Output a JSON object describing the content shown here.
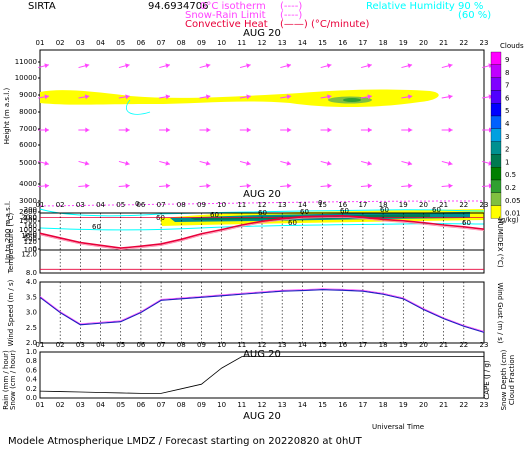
{
  "header": {
    "station": "SIRTA",
    "coords": "94.6934706",
    "isotherm_label": "0°C isotherm",
    "isotherm_key": "(----)",
    "snowrain_label": "Snow-Rain Limit",
    "snowrain_key": "(----)",
    "convective_label": "Convective Heat",
    "convective_key": "(——) (°C/minute)",
    "rh_label": "Relative Humidity",
    "rh_90": "90 %",
    "rh_60": "(60 %)"
  },
  "footer": {
    "universal_time": "Universal Time",
    "caption": "Modele Atmospherique LMDZ / Forecast starting on 20220820 at 0hUT"
  },
  "colors": {
    "frame": "#000000",
    "wind_arrow": "#ff44ff",
    "temperature": "#e8003a",
    "wind_speed": "#2020c0",
    "rain": "#000000",
    "humidity_90": "#00ffff",
    "isotherm": "#ff44ff"
  },
  "chart_data": [
    {
      "type": "heatmap",
      "panel": "clouds",
      "date_label": "AUG 20",
      "x_ticks": [
        "01",
        "02",
        "03",
        "04",
        "05",
        "06",
        "07",
        "08",
        "09",
        "10",
        "11",
        "12",
        "13",
        "14",
        "15",
        "16",
        "17",
        "18",
        "19",
        "20",
        "21",
        "22",
        "23"
      ],
      "ylabel": "Height (m a.s.l.)",
      "y_ticks": [
        "11000",
        "10000",
        "9000",
        "8000",
        "7000",
        "6000",
        "5000",
        "4000",
        "3000",
        "2000",
        "1500",
        "1000",
        "500",
        "0"
      ],
      "lower_label": "Up to 200 m a.s.l.",
      "lower_ticks": [
        "200",
        "180",
        "160",
        "140",
        "120",
        "100"
      ],
      "colorbar_title": "Clouds",
      "colorbar_ticks": [
        "9",
        "8",
        "7",
        "6",
        "5",
        "4",
        "3",
        "2",
        "1",
        "0.5",
        "0.2",
        "0.05",
        "0.01"
      ],
      "colorbar_colors": [
        "#ff00ff",
        "#c000ff",
        "#8000ff",
        "#5000ff",
        "#0000ff",
        "#0060ff",
        "#00a0e0",
        "#009090",
        "#007a50",
        "#008000",
        "#30a030",
        "#80c040",
        "#ffff00"
      ],
      "colorbar_unit": "(g/kg)",
      "isotherm_value_label": "0",
      "rh_contour_labels": [
        "60",
        "60",
        "60",
        "60",
        "60",
        "60",
        "60",
        "60",
        "60",
        "60"
      ]
    },
    {
      "type": "line",
      "panel": "temperature",
      "x": [
        "01",
        "02",
        "03",
        "04",
        "05",
        "06",
        "07",
        "08",
        "09",
        "10",
        "11",
        "12",
        "13",
        "14",
        "15",
        "16",
        "17",
        "18",
        "19",
        "20",
        "21",
        "22",
        "23"
      ],
      "series": [
        {
          "values": [
            16.6,
            15.6,
            14.6,
            14.0,
            13.4,
            13.8,
            14.3,
            15.3,
            16.5,
            17.4,
            18.4,
            19.2,
            19.8,
            20.2,
            20.3,
            20.4,
            20.1,
            19.6,
            19.3,
            18.9,
            18.4,
            18.0,
            17.5
          ]
        }
      ],
      "ylabel": "Temperature (°C)",
      "y2label": "HUMIDEX (°C)",
      "ylim": [
        8.0,
        21.0
      ],
      "y_ticks": [
        "20.0",
        "16.0",
        "12.0",
        "8.0"
      ]
    },
    {
      "type": "line",
      "panel": "wind",
      "x": [
        "01",
        "02",
        "03",
        "04",
        "05",
        "06",
        "07",
        "08",
        "09",
        "10",
        "11",
        "12",
        "13",
        "14",
        "15",
        "16",
        "17",
        "18",
        "19",
        "20",
        "21",
        "22",
        "23"
      ],
      "series": [
        {
          "values": [
            3.5,
            3.0,
            2.6,
            2.65,
            2.7,
            3.0,
            3.4,
            3.45,
            3.5,
            3.55,
            3.6,
            3.65,
            3.7,
            3.72,
            3.75,
            3.73,
            3.7,
            3.6,
            3.45,
            3.1,
            2.8,
            2.55,
            2.35
          ]
        }
      ],
      "ylabel": "Wind Speed (m / s)",
      "y2label": "Wind Gust (m / s)",
      "ylim": [
        2.0,
        4.0
      ],
      "y_ticks": [
        "4.0",
        "3.5",
        "3.0",
        "2.5",
        "2.0"
      ]
    },
    {
      "type": "line",
      "panel": "rain",
      "date_label": "AUG 20",
      "x": [
        "01",
        "02",
        "03",
        "04",
        "05",
        "06",
        "07",
        "08",
        "09",
        "10",
        "11",
        "12",
        "13",
        "14",
        "15",
        "16",
        "17",
        "18",
        "19",
        "20",
        "21",
        "22",
        "23"
      ],
      "series": [
        {
          "values": [
            0.15,
            0.14,
            0.13,
            0.12,
            0.11,
            0.1,
            0.1,
            0.2,
            0.3,
            0.65,
            0.9,
            0.9,
            0.9,
            0.9,
            0.9,
            0.9,
            0.9,
            0.9,
            0.9,
            0.9,
            0.9,
            0.9,
            0.9
          ]
        }
      ],
      "ylabel": "Rain (mm / hour)",
      "ylabel2": "Snow (cm / hour)",
      "y2label": "CAPE (J / g)",
      "y3label": "Snow Depth (cm)",
      "y4label": "Cloud Fraction",
      "ylim": [
        0.0,
        1.0
      ],
      "y_ticks": [
        "1.0",
        "0.8",
        "0.6",
        "0.4",
        "0.2",
        "0.0"
      ]
    }
  ]
}
